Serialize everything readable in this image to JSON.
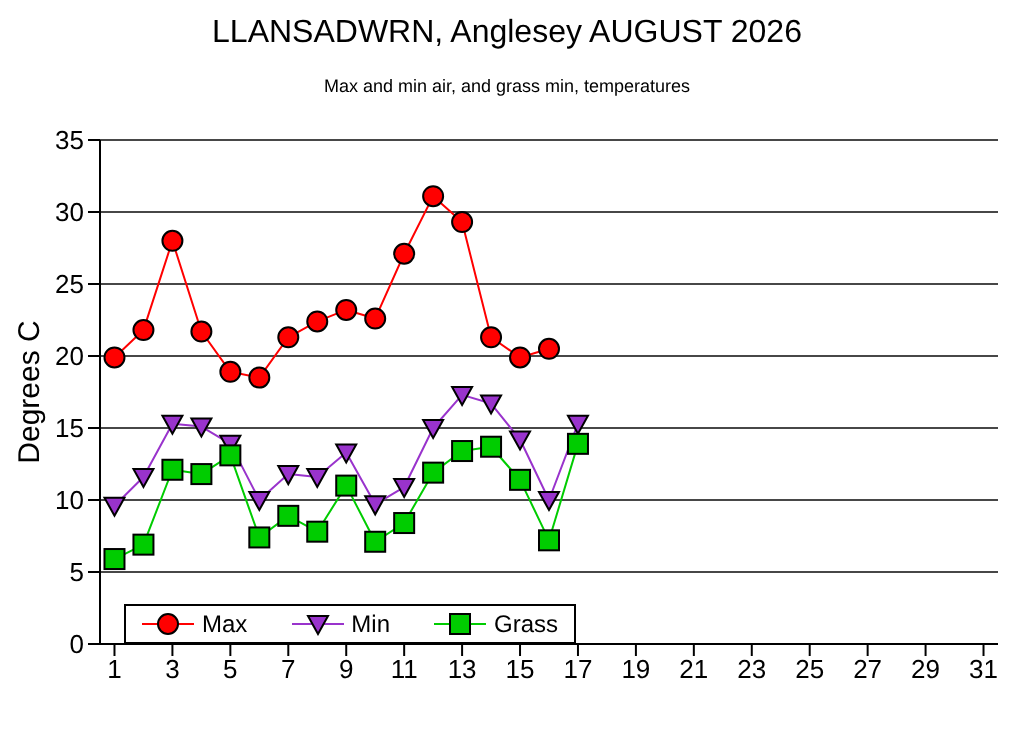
{
  "chart_data": {
    "type": "line",
    "title": "LLANSADWRN, Anglesey AUGUST 2026",
    "subtitle": "Max and min air, and grass min, temperatures",
    "ylabel": "Degrees C",
    "x": [
      1,
      2,
      3,
      4,
      5,
      6,
      7,
      8,
      9,
      10,
      11,
      12,
      13,
      14,
      15,
      16,
      17
    ],
    "series": [
      {
        "name": "Max",
        "color": "#ff0000",
        "marker": "circle",
        "values": [
          19.9,
          21.8,
          28.0,
          21.7,
          18.9,
          18.5,
          21.3,
          22.4,
          23.2,
          22.6,
          27.1,
          31.1,
          29.3,
          21.3,
          19.9,
          20.5,
          null
        ]
      },
      {
        "name": "Min",
        "color": "#9933cc",
        "marker": "triangle",
        "values": [
          9.6,
          11.6,
          15.3,
          15.1,
          13.9,
          10.0,
          11.8,
          11.6,
          13.3,
          9.7,
          10.9,
          15.0,
          17.3,
          16.7,
          14.2,
          10.0,
          15.3
        ]
      },
      {
        "name": "Grass",
        "color": "#00cc00",
        "marker": "square",
        "values": [
          5.9,
          6.9,
          12.1,
          11.8,
          13.1,
          7.4,
          8.9,
          7.8,
          11.0,
          7.1,
          8.4,
          11.9,
          13.4,
          13.7,
          11.4,
          7.2,
          13.9
        ]
      }
    ],
    "xlim": [
      0.5,
      31.5
    ],
    "xticks": [
      1,
      3,
      5,
      7,
      9,
      11,
      13,
      15,
      17,
      19,
      21,
      23,
      25,
      27,
      29,
      31
    ],
    "ylim": [
      0,
      35
    ],
    "yticks": [
      0,
      5,
      10,
      15,
      20,
      25,
      30,
      35
    ],
    "grid": "y",
    "legend": "bottom left"
  }
}
